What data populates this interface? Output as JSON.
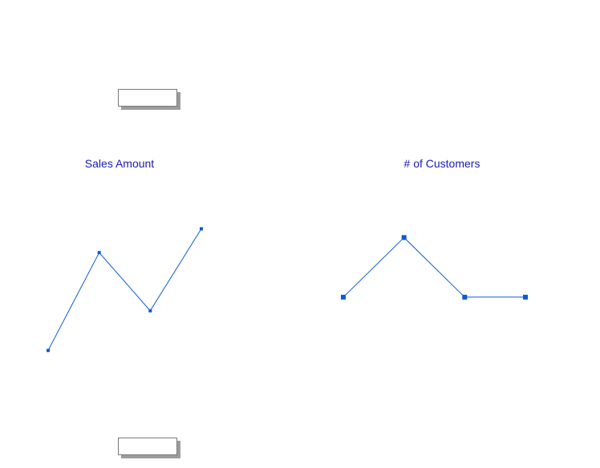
{
  "colors": {
    "series": "#0a5ad8",
    "title": "#1a1ab0"
  },
  "chart_data": [
    {
      "type": "line",
      "title": "Sales Amount",
      "x": [
        1,
        2,
        3,
        4
      ],
      "values": [
        19,
        56,
        34,
        65
      ],
      "ylim": [
        0,
        100
      ],
      "grid": false,
      "legend": "none"
    },
    {
      "type": "line",
      "title": "# of Customers",
      "x": [
        1,
        2,
        3,
        4
      ],
      "values": [
        40,
        70,
        40,
        40
      ],
      "ylim": [
        0,
        100
      ],
      "grid": false,
      "legend": "none"
    }
  ]
}
